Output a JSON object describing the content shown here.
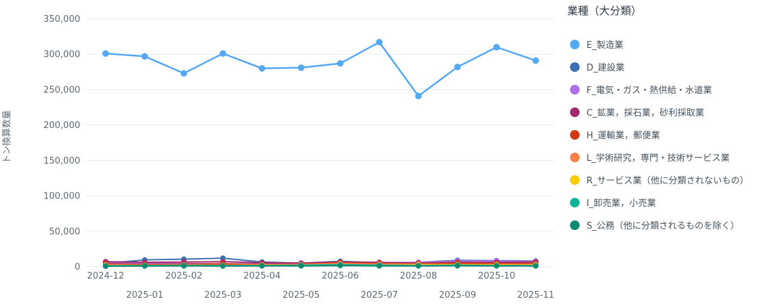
{
  "legend": {
    "title": "業種（大分類）"
  },
  "axes": {
    "y_title": "トン換算数量",
    "y_ticks": [
      "0",
      "50,000",
      "100,000",
      "150,000",
      "200,000",
      "250,000",
      "300,000",
      "350,000"
    ],
    "x_ticks": [
      "2024-12",
      "2025-01",
      "2025-02",
      "2025-03",
      "2025-04",
      "2025-05",
      "2025-06",
      "2025-07",
      "2025-08",
      "2025-09",
      "2025-10",
      "2025-11"
    ]
  },
  "colors": {
    "background": "#ffffff",
    "grid": "#e8edf1",
    "tick_text": "#5d6a74",
    "legend_title_text": "#2f3b46",
    "legend_label_text": "#45525c"
  },
  "chart_data": {
    "type": "line",
    "title": "",
    "xlabel": "",
    "ylabel": "トン換算数量",
    "ylim": [
      0,
      350000
    ],
    "ytick_step": 50000,
    "grid": true,
    "legend_title": "業種（大分類）",
    "legend_position": "right",
    "x": [
      "2024-12",
      "2025-01",
      "2025-02",
      "2025-03",
      "2025-04",
      "2025-05",
      "2025-06",
      "2025-07",
      "2025-08",
      "2025-09",
      "2025-10",
      "2025-11"
    ],
    "series": [
      {
        "name": "E_製造業",
        "color": "#55a8f3",
        "values": [
          301000,
          297000,
          273000,
          301000,
          280000,
          281000,
          287000,
          317000,
          241000,
          282000,
          310000,
          291000
        ]
      },
      {
        "name": "D_建設業",
        "color": "#3d70b2",
        "values": [
          4500,
          9500,
          10500,
          12000,
          6500,
          5000,
          7500,
          5500,
          6000,
          9000,
          8500,
          8000
        ]
      },
      {
        "name": "F_電気・ガス・熱供給・水道業",
        "color": "#ad6ee6",
        "values": [
          5000,
          4500,
          4500,
          4000,
          4000,
          4000,
          5000,
          5000,
          6000,
          8000,
          8000,
          7500
        ]
      },
      {
        "name": "C_鉱業，採石業，砂利採取業",
        "color": "#a32a71",
        "values": [
          7000,
          6000,
          6500,
          7000,
          5500,
          5000,
          6500,
          6000,
          5000,
          6000,
          6000,
          6500
        ]
      },
      {
        "name": "H_運輸業，郵便業",
        "color": "#cf3a12",
        "values": [
          4000,
          3000,
          3500,
          4000,
          3000,
          3500,
          5500,
          4500,
          4000,
          5000,
          4500,
          4500
        ]
      },
      {
        "name": "L_学術研究，専門・技術サービス業",
        "color": "#f97f48",
        "values": [
          2500,
          2000,
          2500,
          2000,
          2500,
          3000,
          4500,
          3500,
          3500,
          3000,
          3000,
          3000
        ]
      },
      {
        "name": "R_サービス業（他に分類されないもの）",
        "color": "#f9cd02",
        "values": [
          1500,
          1000,
          1200,
          1500,
          1800,
          2000,
          2500,
          2000,
          2200,
          2500,
          2000,
          2000
        ]
      },
      {
        "name": "I_卸売業，小売業",
        "color": "#13b29b",
        "values": [
          1200,
          1500,
          1800,
          1500,
          1500,
          2000,
          2800,
          2000,
          1500,
          2000,
          1500,
          1500
        ]
      },
      {
        "name": "S_公務（他に分類されるものを除く）",
        "color": "#0d8a6f",
        "values": [
          600,
          800,
          1000,
          800,
          1000,
          1000,
          1500,
          1000,
          1000,
          1200,
          1000,
          900
        ]
      }
    ]
  }
}
